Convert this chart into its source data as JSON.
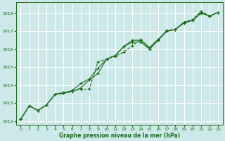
{
  "xlabel": "Graphe pression niveau de la mer (hPa)",
  "bg_color": "#cce8e8",
  "plot_bg_color": "#cce8e8",
  "grid_color": "#ffffff",
  "line_color": "#1a6b1a",
  "xlim": [
    -0.5,
    23.5
  ],
  "ylim": [
    1011.8,
    1018.6
  ],
  "yticks": [
    1012,
    1013,
    1014,
    1015,
    1016,
    1017,
    1018
  ],
  "xticks": [
    0,
    1,
    2,
    3,
    4,
    5,
    6,
    7,
    8,
    9,
    10,
    11,
    12,
    13,
    14,
    15,
    16,
    17,
    18,
    19,
    20,
    21,
    22,
    23
  ],
  "series1_x": [
    0,
    1,
    2,
    3,
    4,
    5,
    6,
    7,
    8,
    9,
    10,
    11,
    12,
    13,
    14,
    15,
    16,
    17,
    18,
    19,
    20,
    21,
    22,
    23
  ],
  "series1_y": [
    1012.1,
    1012.85,
    1012.6,
    1012.9,
    1013.5,
    1013.6,
    1013.7,
    1013.75,
    1013.8,
    1015.3,
    1015.45,
    1015.6,
    1015.85,
    1016.2,
    1016.55,
    1016.0,
    1016.5,
    1017.05,
    1017.1,
    1017.5,
    1017.65,
    1018.1,
    1017.85,
    1018.05
  ],
  "series2_x": [
    0,
    1,
    2,
    3,
    4,
    5,
    6,
    7,
    8,
    9,
    10,
    11,
    12,
    13,
    14,
    15,
    16,
    17,
    18,
    19,
    20,
    21,
    22,
    23
  ],
  "series2_y": [
    1012.1,
    1012.85,
    1012.6,
    1012.9,
    1013.5,
    1013.55,
    1013.65,
    1013.85,
    1014.3,
    1014.65,
    1015.45,
    1015.65,
    1016.15,
    1016.4,
    1016.4,
    1016.0,
    1016.5,
    1017.0,
    1017.1,
    1017.5,
    1017.6,
    1018.05,
    1017.85,
    1018.05
  ],
  "series3_x": [
    0,
    1,
    2,
    3,
    4,
    5,
    6,
    7,
    8,
    9,
    10,
    11,
    12,
    13,
    14,
    15,
    16,
    17,
    18,
    19,
    20,
    21,
    22,
    23
  ],
  "series3_y": [
    1012.1,
    1012.85,
    1012.6,
    1012.9,
    1013.5,
    1013.55,
    1013.7,
    1014.1,
    1014.35,
    1014.95,
    1015.45,
    1015.65,
    1016.15,
    1016.5,
    1016.5,
    1016.1,
    1016.55,
    1017.0,
    1017.1,
    1017.45,
    1017.6,
    1018.0,
    1017.85,
    1018.05
  ],
  "series1_dashed": true,
  "xlabel_fontsize": 5.5,
  "tick_fontsize": 4.5
}
